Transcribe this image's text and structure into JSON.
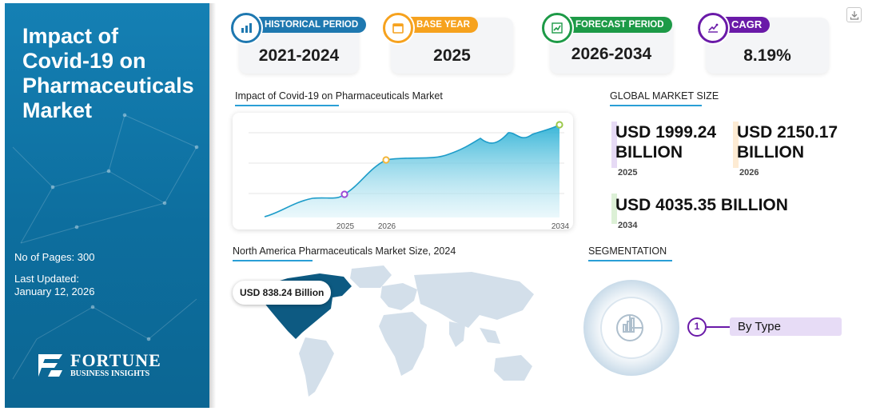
{
  "report": {
    "title_lines": [
      "Impact of",
      "Covid-19 on",
      "Pharmaceuticals",
      "Market"
    ],
    "pages": "No of Pages: 300",
    "updated_label": "Last Updated:",
    "updated_date": "January 12, 2026"
  },
  "brand": {
    "name": "FORTUNE",
    "tagline": "BUSINESS INSIGHTS"
  },
  "stats": [
    {
      "label": "HISTORICAL PERIOD",
      "value": "2021-2024",
      "color": "#1e78b0",
      "icon": "bar-chart-icon"
    },
    {
      "label": "BASE YEAR",
      "value": "2025",
      "color": "#f6a21e",
      "icon": "calendar-icon"
    },
    {
      "label": "FORECAST PERIOD",
      "value": "2026-2034",
      "color": "#1d9a47",
      "icon": "forecast-chart-icon"
    },
    {
      "label": "CAGR",
      "value": "8.19%",
      "color": "#6a1aa8",
      "icon": "growth-chart-icon"
    }
  ],
  "chart_section": {
    "title": "Impact of Covid-19 on Pharmaceuticals Market"
  },
  "chart_data": {
    "type": "area",
    "title": "Impact of Covid-19 on Pharmaceuticals Market",
    "x_ticks": [
      "2025",
      "2026",
      "2034"
    ],
    "markers": [
      {
        "label": "2025",
        "color": "#9b4ad6"
      },
      {
        "label": "2026",
        "color": "#f3b63a"
      },
      {
        "label": "2034",
        "color": "#9bc84a"
      }
    ]
  },
  "market_size": {
    "title": "GLOBAL MARKET SIZE",
    "items": [
      {
        "value": "USD 1999.24",
        "unit": "BILLION",
        "year": "2025",
        "color": "#e6daf5"
      },
      {
        "value": "USD 2150.17",
        "unit": "BILLION",
        "year": "2026",
        "color": "#fdebd3"
      },
      {
        "value": "USD 4035.35 BILLION",
        "year": "2034",
        "color": "#dcf0d6"
      }
    ]
  },
  "north_america": {
    "title": "North America Pharmaceuticals Market Size, 2024",
    "value": "USD 838.24 Billion"
  },
  "segmentation": {
    "title": "SEGMENTATION",
    "items": [
      {
        "number": "1",
        "label": "By Type"
      }
    ]
  }
}
